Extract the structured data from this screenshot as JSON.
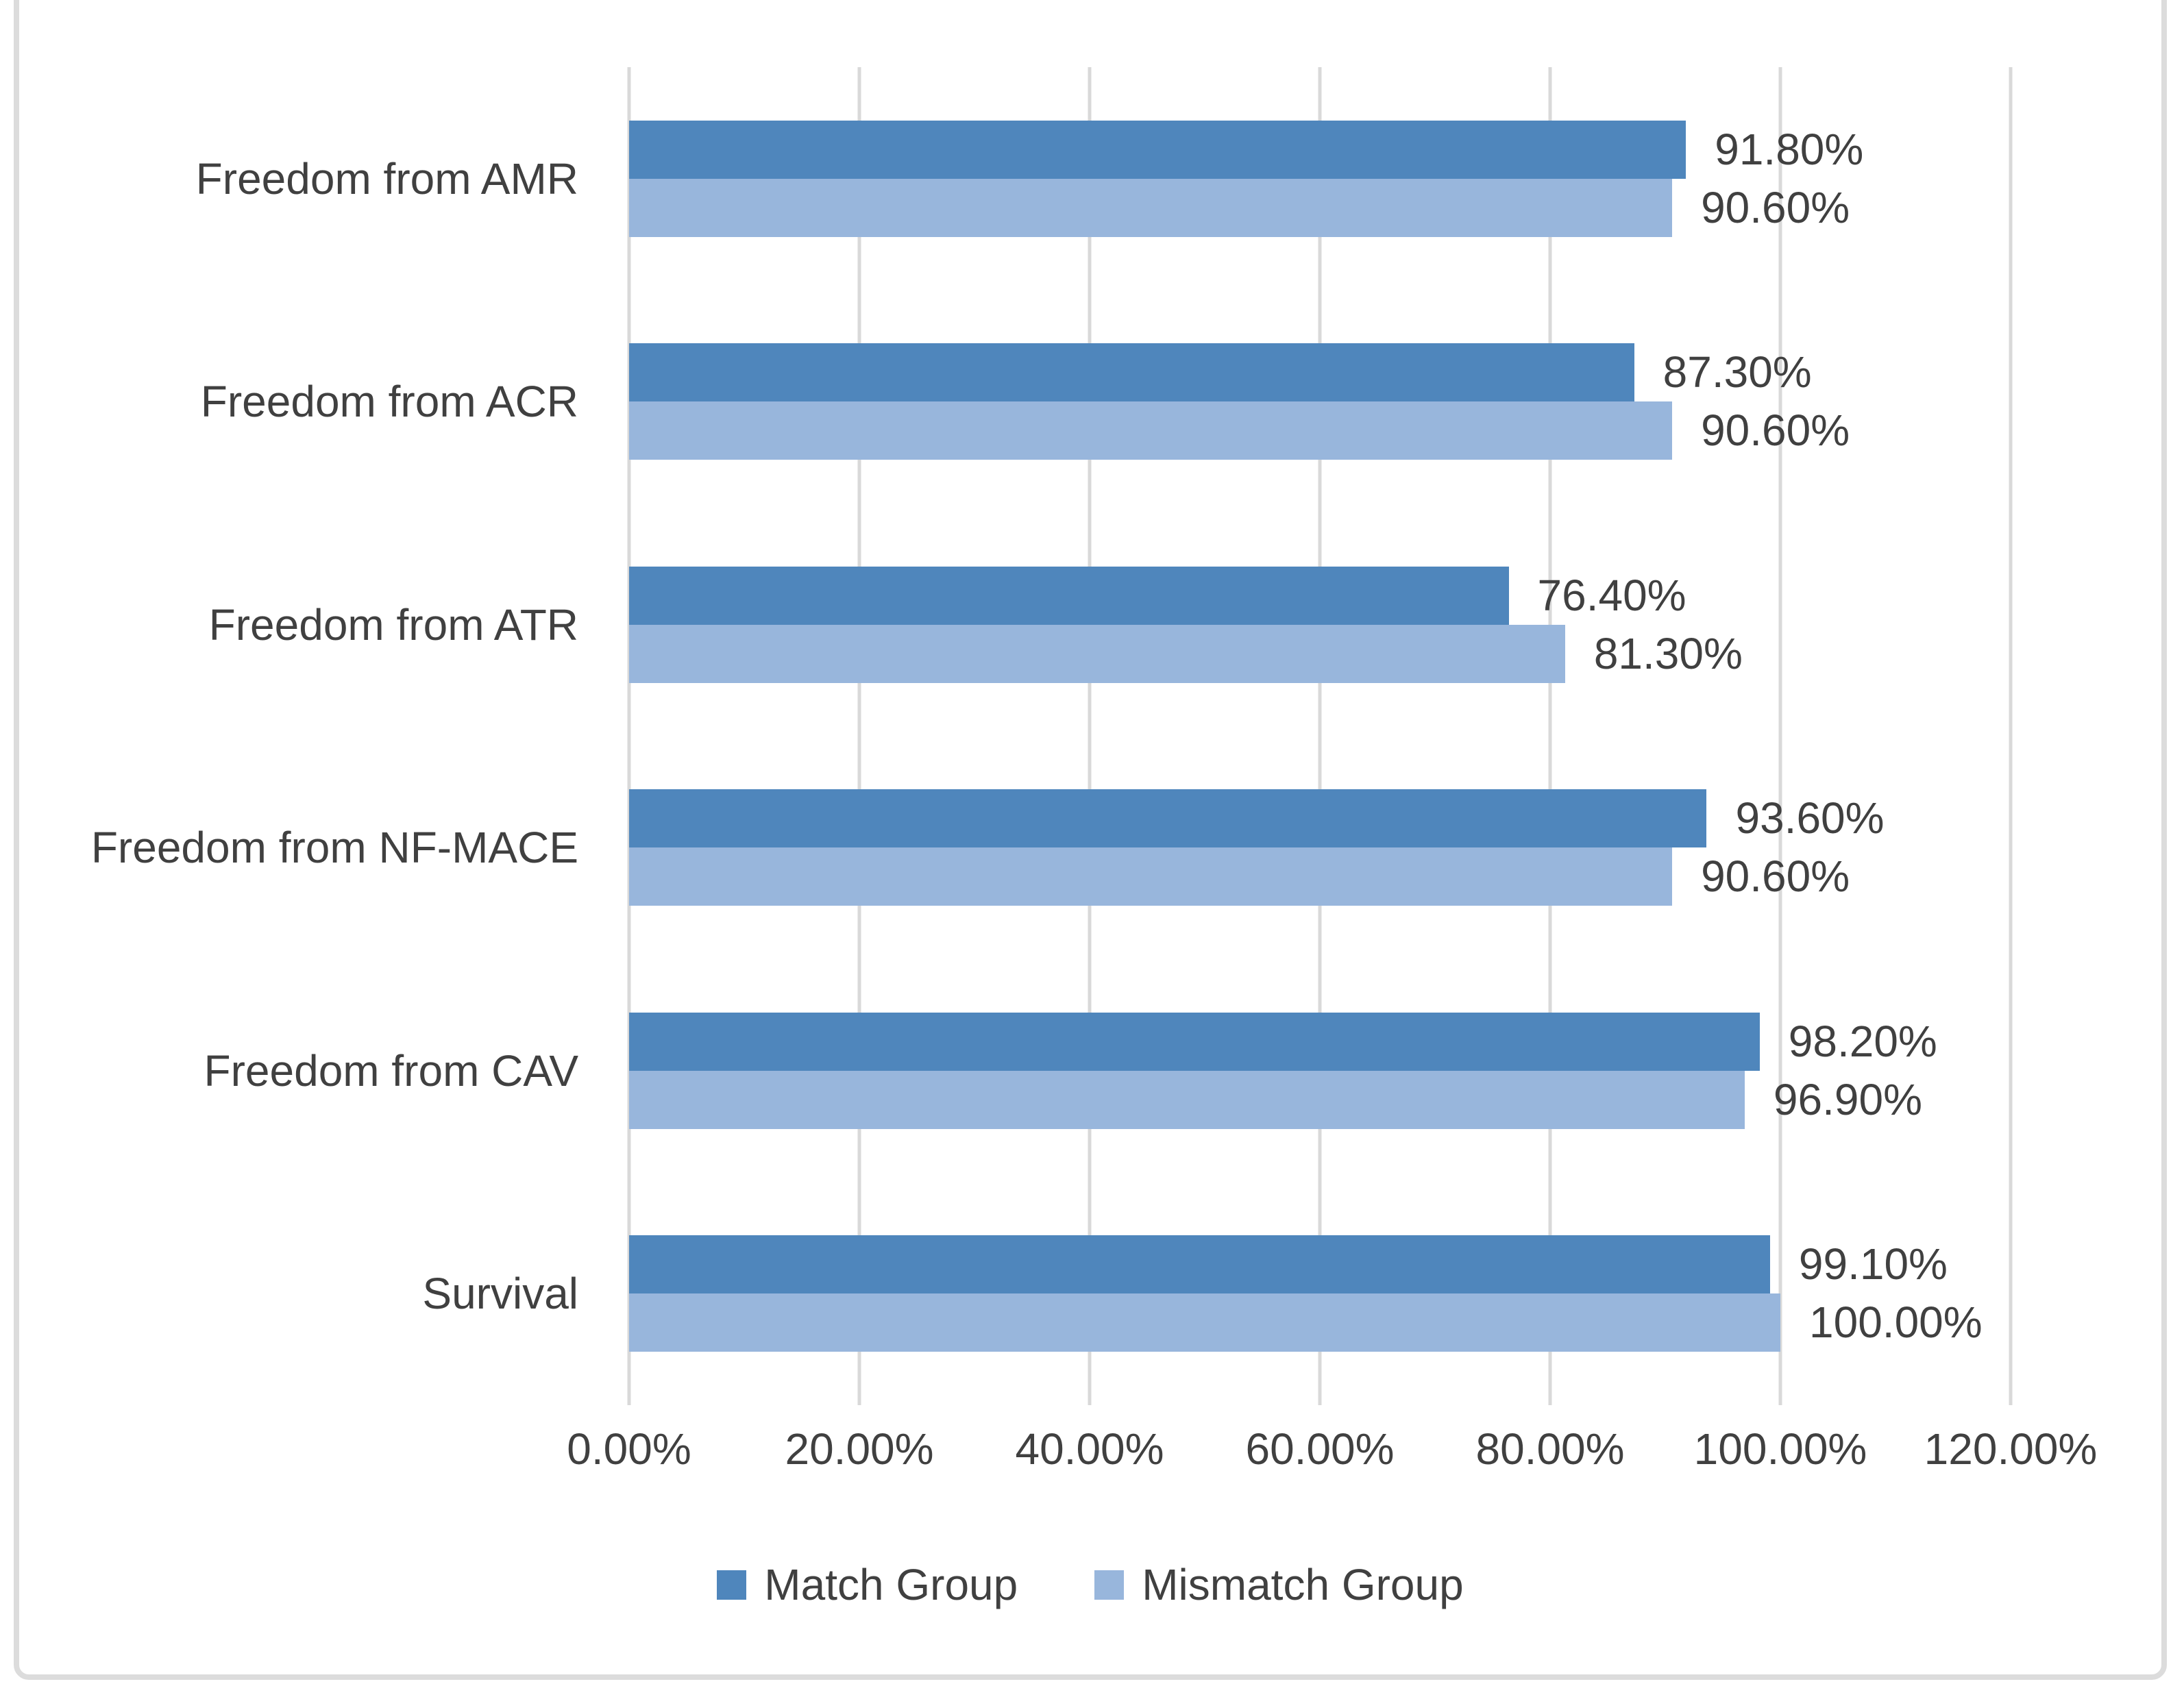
{
  "chart_data": {
    "type": "bar",
    "orientation": "horizontal",
    "title": "",
    "xlabel": "",
    "ylabel": "",
    "xlim": [
      0,
      120
    ],
    "grid": "vertical",
    "legend_position": "bottom",
    "categories": [
      "Freedom from AMR",
      "Freedom from ACR",
      "Freedom from ATR",
      "Freedom from NF-MACE",
      "Freedom from CAV",
      "Survival"
    ],
    "series": [
      {
        "name": "Match Group",
        "color": "#4F86BC",
        "values": [
          91.8,
          87.3,
          76.4,
          93.6,
          98.2,
          99.1
        ],
        "labels": [
          "91.80%",
          "87.30%",
          "76.40%",
          "93.60%",
          "98.20%",
          "99.10%"
        ]
      },
      {
        "name": "Mismatch Group",
        "color": "#98B6DC",
        "values": [
          90.6,
          90.6,
          81.3,
          90.6,
          96.9,
          100.0
        ],
        "labels": [
          "90.60%",
          "90.60%",
          "81.30%",
          "90.60%",
          "96.90%",
          "100.00%"
        ]
      }
    ],
    "x_ticks": [
      "0.00%",
      "20.00%",
      "40.00%",
      "60.00%",
      "80.00%",
      "100.00%",
      "120.00%"
    ]
  },
  "colors": {
    "gridline": "#D9D9D9",
    "frame_border": "#DCDCDC",
    "text": "#404040",
    "background": "#FFFFFF"
  }
}
